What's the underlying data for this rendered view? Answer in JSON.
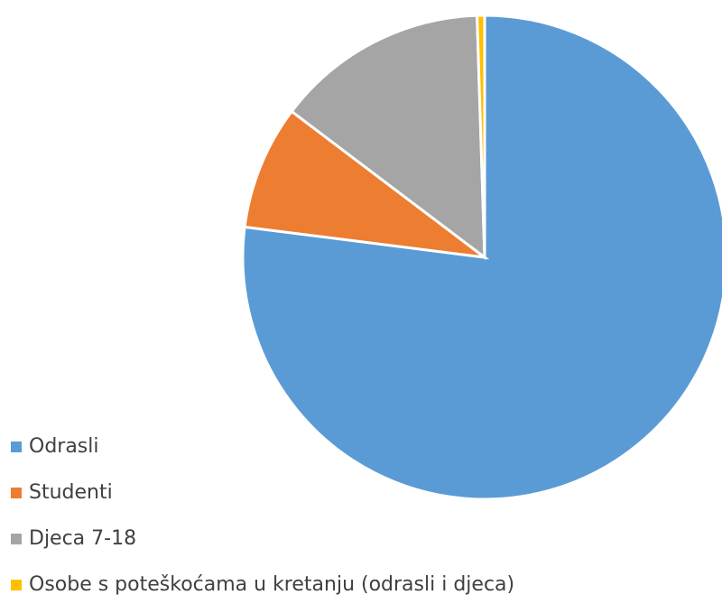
{
  "chart_data": {
    "type": "pie",
    "categories": [
      "Odrasli",
      "Studenti",
      "Djeca 7-18",
      "Osobe s poteškoćama u kretanju (odrasli i djeca)"
    ],
    "values": [
      77,
      8.3,
      14.2,
      0.5
    ],
    "colors": [
      "#5b9bd5",
      "#ed7d31",
      "#a5a5a5",
      "#ffc000"
    ],
    "legend": "bottom-left"
  }
}
